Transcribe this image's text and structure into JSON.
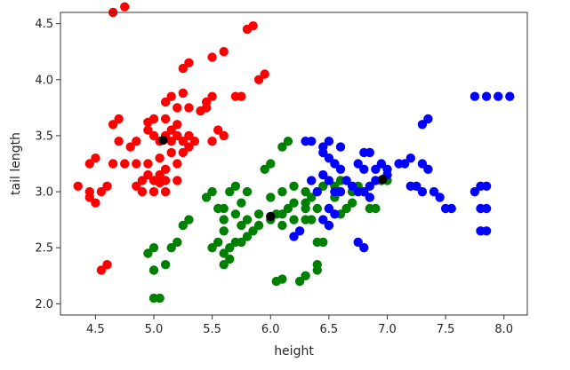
{
  "chart_data": {
    "type": "scatter",
    "xlabel": "height",
    "ylabel": "tail length",
    "xlim": [
      4.2,
      8.2
    ],
    "ylim": [
      1.9,
      4.6
    ],
    "xticks": [
      "4.5",
      "5.0",
      "5.5",
      "6.0",
      "6.5",
      "7.0",
      "7.5",
      "8.0"
    ],
    "yticks": [
      "2.0",
      "2.5",
      "3.0",
      "3.5",
      "4.0",
      "4.5"
    ],
    "grid": false,
    "series": [
      {
        "color": "#ff0000",
        "points": [
          [
            4.75,
            4.65
          ],
          [
            4.65,
            4.6
          ],
          [
            5.3,
            4.15
          ],
          [
            5.25,
            4.1
          ],
          [
            5.85,
            4.48
          ],
          [
            5.8,
            4.45
          ],
          [
            5.6,
            4.25
          ],
          [
            5.5,
            4.2
          ],
          [
            5.95,
            4.05
          ],
          [
            5.9,
            4.0
          ],
          [
            5.25,
            3.88
          ],
          [
            5.15,
            3.85
          ],
          [
            5.1,
            3.8
          ],
          [
            5.2,
            3.75
          ],
          [
            5.5,
            3.85
          ],
          [
            5.45,
            3.8
          ],
          [
            5.75,
            3.85
          ],
          [
            5.7,
            3.85
          ],
          [
            5.45,
            3.75
          ],
          [
            5.4,
            3.72
          ],
          [
            5.3,
            3.75
          ],
          [
            5.0,
            3.65
          ],
          [
            4.95,
            3.62
          ],
          [
            5.1,
            3.65
          ],
          [
            5.2,
            3.6
          ],
          [
            5.15,
            3.55
          ],
          [
            4.7,
            3.65
          ],
          [
            4.65,
            3.6
          ],
          [
            4.95,
            3.55
          ],
          [
            5.1,
            3.5
          ],
          [
            5.2,
            3.5
          ],
          [
            5.3,
            3.5
          ],
          [
            5.35,
            3.45
          ],
          [
            5.0,
            3.5
          ],
          [
            5.05,
            3.45
          ],
          [
            5.15,
            3.45
          ],
          [
            5.25,
            3.45
          ],
          [
            4.7,
            3.45
          ],
          [
            4.85,
            3.45
          ],
          [
            4.8,
            3.4
          ],
          [
            4.5,
            3.3
          ],
          [
            4.45,
            3.25
          ],
          [
            4.65,
            3.25
          ],
          [
            4.75,
            3.25
          ],
          [
            4.85,
            3.25
          ],
          [
            4.95,
            3.25
          ],
          [
            5.05,
            3.3
          ],
          [
            5.15,
            3.35
          ],
          [
            5.25,
            3.35
          ],
          [
            5.3,
            3.4
          ],
          [
            4.95,
            3.15
          ],
          [
            5.05,
            3.15
          ],
          [
            5.1,
            3.2
          ],
          [
            5.2,
            3.25
          ],
          [
            4.9,
            3.1
          ],
          [
            5.0,
            3.1
          ],
          [
            5.1,
            3.1
          ],
          [
            5.2,
            3.1
          ],
          [
            4.85,
            3.05
          ],
          [
            4.9,
            3.0
          ],
          [
            5.0,
            3.0
          ],
          [
            5.1,
            3.0
          ],
          [
            5.05,
            3.08
          ],
          [
            4.6,
            3.05
          ],
          [
            4.55,
            3.0
          ],
          [
            4.45,
            3.0
          ],
          [
            4.35,
            3.05
          ],
          [
            4.45,
            2.95
          ],
          [
            4.5,
            2.9
          ],
          [
            5.5,
            3.45
          ],
          [
            5.6,
            3.5
          ],
          [
            5.55,
            3.55
          ],
          [
            4.6,
            2.35
          ],
          [
            4.55,
            2.3
          ]
        ]
      },
      {
        "color": "#008000",
        "points": [
          [
            5.0,
            2.05
          ],
          [
            5.05,
            2.05
          ],
          [
            5.0,
            2.3
          ],
          [
            5.1,
            2.35
          ],
          [
            6.1,
            2.22
          ],
          [
            6.05,
            2.2
          ],
          [
            6.3,
            2.25
          ],
          [
            6.25,
            2.2
          ],
          [
            6.4,
            2.3
          ],
          [
            4.95,
            2.45
          ],
          [
            5.0,
            2.5
          ],
          [
            5.15,
            2.5
          ],
          [
            5.2,
            2.55
          ],
          [
            5.6,
            2.35
          ],
          [
            5.65,
            2.4
          ],
          [
            5.6,
            2.45
          ],
          [
            5.65,
            2.5
          ],
          [
            5.7,
            2.55
          ],
          [
            5.75,
            2.55
          ],
          [
            5.8,
            2.6
          ],
          [
            5.85,
            2.65
          ],
          [
            5.9,
            2.7
          ],
          [
            6.0,
            2.75
          ],
          [
            6.05,
            2.8
          ],
          [
            6.1,
            2.8
          ],
          [
            6.15,
            2.85
          ],
          [
            6.2,
            2.9
          ],
          [
            6.3,
            2.9
          ],
          [
            6.4,
            2.55
          ],
          [
            6.45,
            2.55
          ],
          [
            6.3,
            2.75
          ],
          [
            6.35,
            2.75
          ],
          [
            6.5,
            2.7
          ],
          [
            6.6,
            2.8
          ],
          [
            6.65,
            2.85
          ],
          [
            6.7,
            2.9
          ],
          [
            6.7,
            3.0
          ],
          [
            6.75,
            3.05
          ],
          [
            6.8,
            3.0
          ],
          [
            6.85,
            2.85
          ],
          [
            6.9,
            2.85
          ],
          [
            6.4,
            2.35
          ],
          [
            6.55,
            2.95
          ],
          [
            5.6,
            2.65
          ],
          [
            5.6,
            2.75
          ],
          [
            5.7,
            2.8
          ],
          [
            5.75,
            2.9
          ],
          [
            5.8,
            3.0
          ],
          [
            5.65,
            3.0
          ],
          [
            5.7,
            3.05
          ],
          [
            5.75,
            2.7
          ],
          [
            5.8,
            2.75
          ],
          [
            5.9,
            2.8
          ],
          [
            6.0,
            2.95
          ],
          [
            6.1,
            3.0
          ],
          [
            6.2,
            3.05
          ],
          [
            6.3,
            3.0
          ],
          [
            6.35,
            2.95
          ],
          [
            6.45,
            3.05
          ],
          [
            6.55,
            3.05
          ],
          [
            6.6,
            3.1
          ],
          [
            6.5,
            2.85
          ],
          [
            6.4,
            2.85
          ],
          [
            6.3,
            2.85
          ],
          [
            6.2,
            2.75
          ],
          [
            6.1,
            2.7
          ],
          [
            5.5,
            3.0
          ],
          [
            5.45,
            2.95
          ],
          [
            5.55,
            2.85
          ],
          [
            5.6,
            2.85
          ],
          [
            5.95,
            3.2
          ],
          [
            6.0,
            3.25
          ],
          [
            6.1,
            3.4
          ],
          [
            6.15,
            3.45
          ],
          [
            5.25,
            2.7
          ],
          [
            5.3,
            2.75
          ],
          [
            6.95,
            3.1
          ],
          [
            7.0,
            3.1
          ],
          [
            5.55,
            2.55
          ],
          [
            5.5,
            2.5
          ]
        ]
      },
      {
        "color": "#0000ff",
        "points": [
          [
            6.3,
            3.45
          ],
          [
            6.35,
            3.45
          ],
          [
            6.45,
            3.4
          ],
          [
            6.5,
            3.45
          ],
          [
            6.6,
            3.4
          ],
          [
            6.45,
            3.35
          ],
          [
            6.5,
            3.3
          ],
          [
            6.55,
            3.25
          ],
          [
            6.6,
            3.2
          ],
          [
            6.8,
            3.35
          ],
          [
            6.85,
            3.35
          ],
          [
            6.75,
            3.25
          ],
          [
            6.8,
            3.2
          ],
          [
            6.9,
            3.2
          ],
          [
            7.0,
            3.2
          ],
          [
            7.1,
            3.25
          ],
          [
            7.15,
            3.25
          ],
          [
            7.0,
            3.15
          ],
          [
            6.9,
            3.1
          ],
          [
            6.85,
            3.05
          ],
          [
            6.8,
            3.0
          ],
          [
            6.75,
            3.0
          ],
          [
            6.7,
            3.05
          ],
          [
            6.65,
            3.1
          ],
          [
            6.5,
            3.1
          ],
          [
            6.45,
            3.15
          ],
          [
            6.55,
            3.0
          ],
          [
            6.6,
            3.0
          ],
          [
            6.5,
            2.85
          ],
          [
            6.55,
            2.8
          ],
          [
            6.45,
            2.75
          ],
          [
            6.5,
            2.7
          ],
          [
            6.25,
            2.65
          ],
          [
            6.2,
            2.6
          ],
          [
            6.75,
            2.55
          ],
          [
            6.8,
            2.5
          ],
          [
            7.35,
            3.65
          ],
          [
            7.3,
            3.6
          ],
          [
            7.2,
            3.3
          ],
          [
            7.3,
            3.25
          ],
          [
            7.35,
            3.2
          ],
          [
            7.25,
            3.05
          ],
          [
            7.3,
            3.0
          ],
          [
            7.4,
            3.0
          ],
          [
            7.45,
            2.95
          ],
          [
            7.5,
            2.85
          ],
          [
            7.55,
            2.85
          ],
          [
            7.2,
            3.05
          ],
          [
            7.75,
            3.0
          ],
          [
            7.8,
            3.05
          ],
          [
            7.85,
            3.05
          ],
          [
            7.8,
            2.85
          ],
          [
            7.85,
            2.85
          ],
          [
            7.8,
            2.65
          ],
          [
            7.85,
            2.65
          ],
          [
            7.75,
            3.85
          ],
          [
            7.85,
            3.85
          ],
          [
            7.95,
            3.85
          ],
          [
            8.05,
            3.85
          ],
          [
            6.95,
            3.25
          ],
          [
            6.85,
            2.95
          ],
          [
            6.4,
            3.0
          ],
          [
            6.35,
            3.1
          ]
        ]
      },
      {
        "color": "#000000",
        "points": [
          [
            5.08,
            3.46
          ],
          [
            6.0,
            2.78
          ],
          [
            6.96,
            3.11
          ]
        ]
      }
    ]
  }
}
